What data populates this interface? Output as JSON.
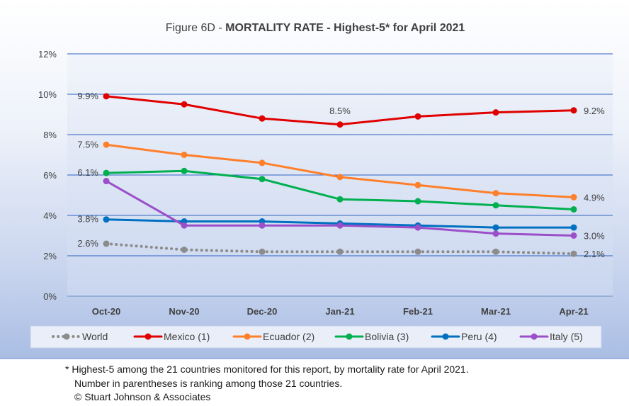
{
  "chart_data": {
    "type": "line",
    "title_prefix": "Figure 6D  - ",
    "title_main": "MORTALITY RATE - Highest-5* for April 2021",
    "categories": [
      "Oct-20",
      "Nov-20",
      "Dec-20",
      "Jan-21",
      "Feb-21",
      "Mar-21",
      "Apr-21"
    ],
    "ylim": [
      0,
      12
    ],
    "yticks": [
      "0%",
      "2%",
      "4%",
      "6%",
      "8%",
      "10%",
      "12%"
    ],
    "grid": true,
    "legend_position": "bottom",
    "series": [
      {
        "name": "World",
        "color": "#8c8c8c",
        "style": "dotted",
        "values": [
          2.6,
          2.3,
          2.2,
          2.2,
          2.2,
          2.2,
          2.1
        ],
        "labels": [
          {
            "index": 0,
            "text": "2.6%"
          },
          {
            "index": 6,
            "text": "2.1%"
          }
        ]
      },
      {
        "name": "Mexico (1)",
        "color": "#e00000",
        "style": "solid",
        "values": [
          9.9,
          9.5,
          8.8,
          8.5,
          8.9,
          9.1,
          9.2
        ],
        "labels": [
          {
            "index": 0,
            "text": "9.9%"
          },
          {
            "index": 3,
            "text": "8.5%"
          },
          {
            "index": 6,
            "text": "9.2%"
          }
        ]
      },
      {
        "name": "Ecuador (2)",
        "color": "#ff7f2a",
        "style": "solid",
        "values": [
          7.5,
          7.0,
          6.6,
          5.9,
          5.5,
          5.1,
          4.9
        ],
        "labels": [
          {
            "index": 0,
            "text": "7.5%"
          },
          {
            "index": 6,
            "text": "4.9%"
          }
        ]
      },
      {
        "name": "Bolivia (3)",
        "color": "#00b050",
        "style": "solid",
        "values": [
          6.1,
          6.2,
          5.8,
          4.8,
          4.7,
          4.5,
          4.3
        ],
        "labels": [
          {
            "index": 0,
            "text": "6.1%"
          }
        ]
      },
      {
        "name": "Peru (4)",
        "color": "#0070c0",
        "style": "solid",
        "values": [
          3.8,
          3.7,
          3.7,
          3.6,
          3.5,
          3.4,
          3.4
        ],
        "labels": [
          {
            "index": 0,
            "text": "3.8%"
          }
        ]
      },
      {
        "name": "Italy (5)",
        "color": "#9b4fc9",
        "style": "solid",
        "values": [
          5.7,
          3.5,
          3.5,
          3.5,
          3.4,
          3.1,
          3.0
        ],
        "labels": [
          {
            "index": 6,
            "text": "3.0%"
          }
        ]
      }
    ]
  },
  "footnotes": {
    "line1": "* Highest-5 among the 21 countries monitored for this report, by mortality rate for April 2021.",
    "line2": "Number in parentheses is ranking among those 21 countries.",
    "line3": "© Stuart Johnson & Associates"
  }
}
